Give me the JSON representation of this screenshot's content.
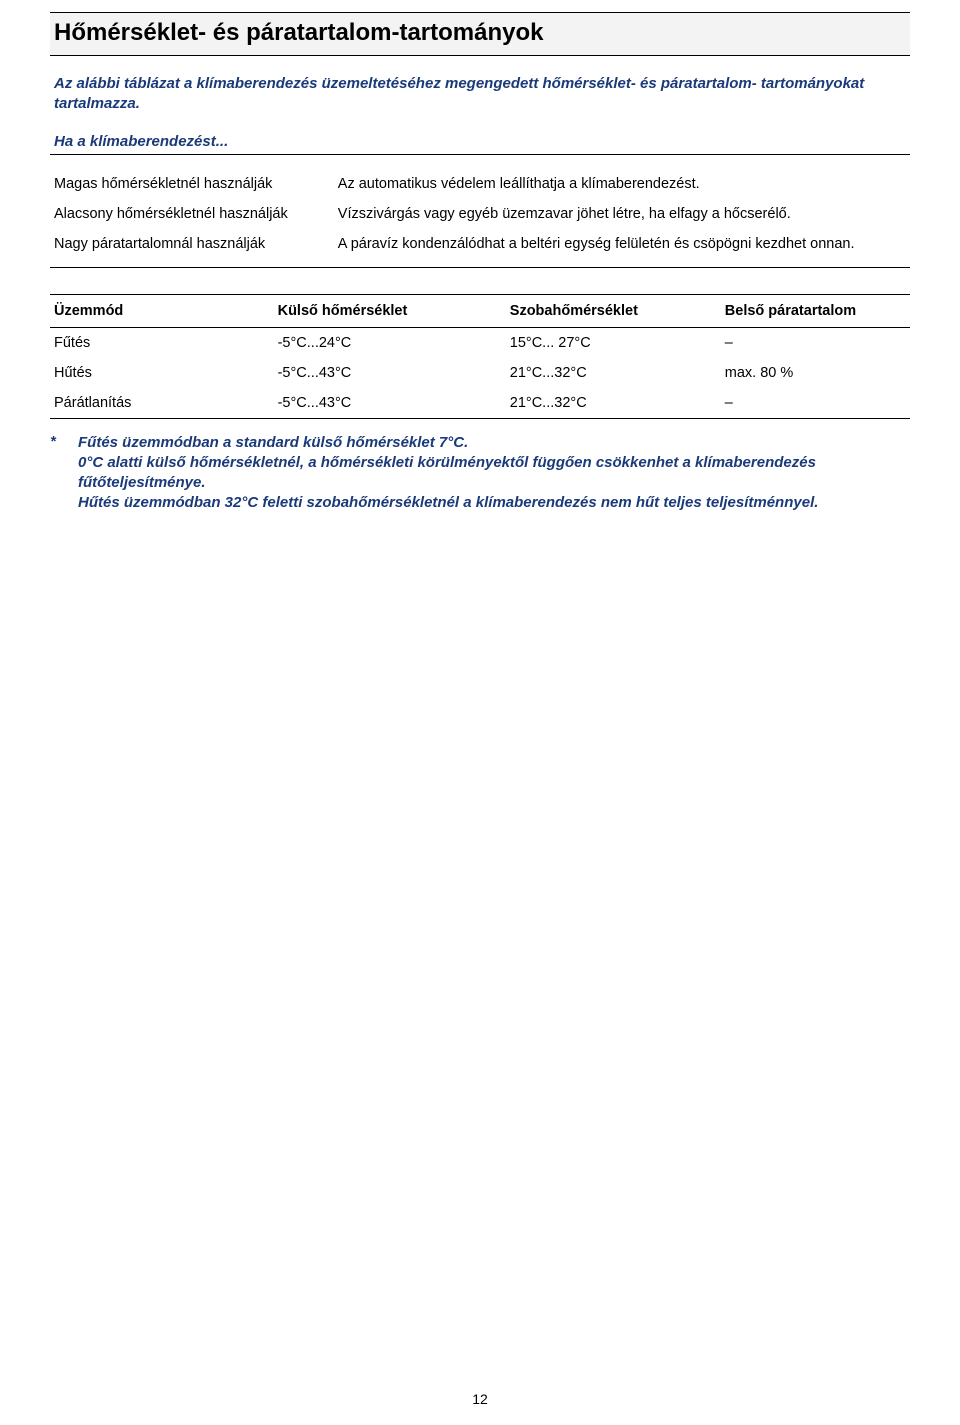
{
  "colors": {
    "text": "#000000",
    "accent": "#1a3a7a",
    "title_bg": "#f3f3f3",
    "rule": "#000000",
    "page_bg": "#ffffff"
  },
  "title": "Hőmérséklet- és páratartalom-tartományok",
  "intro": "Az alábbi táblázat a klímaberendezés üzemeltetéséhez megengedett hőmérséklet- és páratartalom-\ntartományokat tartalmazza.",
  "subhead": "Ha a klímaberendezést...",
  "conditions": [
    {
      "label": "Magas hőmérsékletnél használják",
      "desc": "Az automatikus védelem leállíthatja a klímaberendezést."
    },
    {
      "label": "Alacsony hőmérsékletnél használják",
      "desc": "Vízszivárgás vagy egyéb üzemzavar jöhet létre, ha elfagy a hőcserélő."
    },
    {
      "label": "Nagy páratartalomnál használják",
      "desc": "A páravíz kondenzálódhat a beltéri egység felületén és csöpögni kezdhet onnan."
    }
  ],
  "range_table": {
    "headers": {
      "mode": "Üzemmód",
      "outdoor": "Külső hőmérséklet",
      "room": "Szobahőmérséklet",
      "humidity": "Belső páratartalom"
    },
    "rows": [
      {
        "mode": "Fűtés",
        "outdoor": "-5°C...24°C",
        "room": "15°C... 27°C",
        "humidity": "–"
      },
      {
        "mode": "Hűtés",
        "outdoor": "-5°C...43°C",
        "room": "21°C...32°C",
        "humidity": "max. 80 %"
      },
      {
        "mode": "Párátlanítás",
        "outdoor": "-5°C...43°C",
        "room": "21°C...32°C",
        "humidity": "–"
      }
    ]
  },
  "footnote_mark": "*",
  "footnote_lines": [
    "Fűtés üzemmódban a standard külső hőmérséklet 7°C.",
    "0°C alatti külső hőmérsékletnél, a hőmérsékleti körülményektől függően csökkenhet a klímaberendezés fűtőteljesítménye.",
    "Hűtés üzemmódban 32°C feletti szobahőmérsékletnél  a klímaberendezés nem hűt teljes teljesítménnyel."
  ],
  "page_number": "12"
}
